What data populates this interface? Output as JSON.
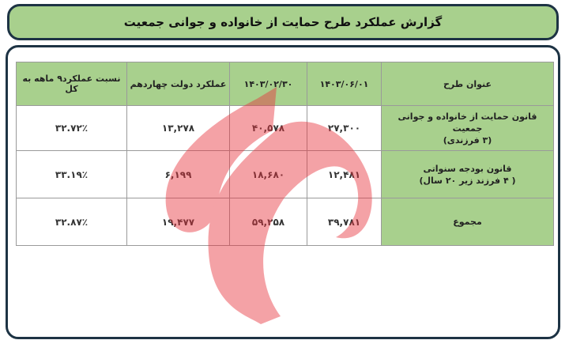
{
  "title": "گزارش عملکرد طرح حمایت از خانواده و جوانی جمعیت",
  "table": {
    "headers": [
      "عنوان طرح",
      "۱۴۰۳/۰۶/۰۱",
      "۱۴۰۳/۰۲/۳۰",
      "عملکرد دولت چهاردهم",
      "نسبت عملکرد۹ ماهه به کل"
    ],
    "rows": [
      {
        "plan_line1": "قانون حمایت از خانواده و جوانی جمعیت",
        "plan_line2": "(۳ فرزندی)",
        "v1": "۲۷,۳۰۰",
        "v2": "۴۰,۵۷۸",
        "v3": "۱۳,۲۷۸",
        "v4": "۳۲.۷۲٪"
      },
      {
        "plan_line1": "قانون بودجه سنواتی",
        "plan_line2": "( ۴ فرزند زیر ۲۰ سال)",
        "v1": "۱۲,۴۸۱",
        "v2": "۱۸,۶۸۰",
        "v3": "۶,۱۹۹",
        "v4": "۳۳.۱۹٪"
      },
      {
        "plan_line1": "مجموع",
        "plan_line2": "",
        "v1": "۳۹,۷۸۱",
        "v2": "۵۹,۲۵۸",
        "v3": "۱۹,۴۷۷",
        "v4": "۳۲.۸۷٪"
      }
    ]
  },
  "colors": {
    "header_green": "#a8d08d",
    "border": "#1d3344",
    "watermark": "#e8323c"
  },
  "watermark_icon": "news-agency-logo-watermark"
}
